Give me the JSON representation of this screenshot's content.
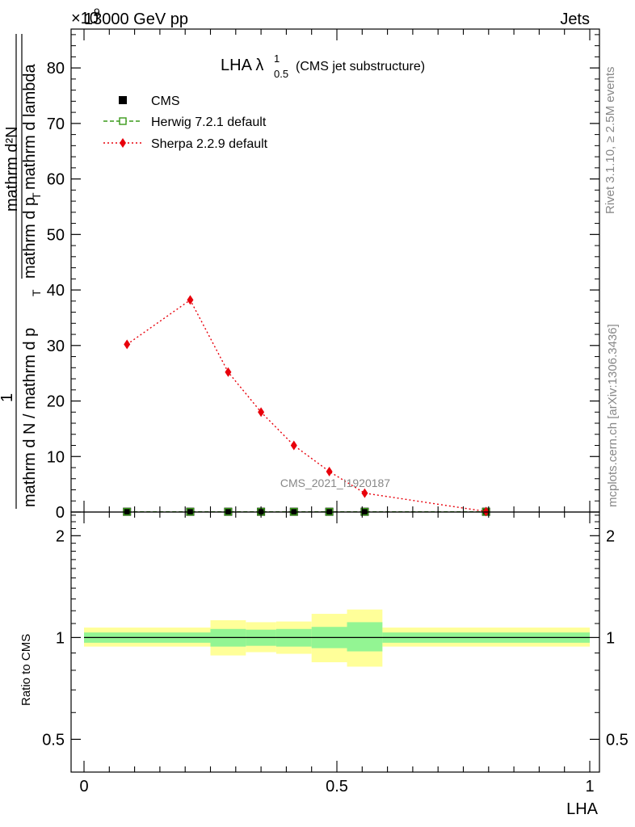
{
  "header": {
    "energy_label": "13000 GeV pp",
    "process_label": "Jets",
    "exponent_label": "×10",
    "exponent_power": "9"
  },
  "side_labels": {
    "rivet": "Rivet 3.1.10, ≥ 2.5M events",
    "mcplots": "mcplots.cern.ch [arXiv:1306.3436]"
  },
  "watermark": "CMS_2021_I1920187",
  "chart_data": [
    {
      "type": "line",
      "title_main": "LHA λ",
      "title_sup": "1",
      "title_sub": "0.5",
      "title_suffix": "(CMS jet substructure)",
      "ylabel": {
        "lead": "1",
        "denominator": "mathrm d N / mathrm d p",
        "denominator_sub": "T",
        "rhs_num": "mathrm d²N",
        "rhs_den": "mathrm d p",
        "rhs_den_sub": "T",
        "rhs_den_tail": "mathrm d lambda"
      },
      "xlim": [
        0,
        1
      ],
      "ylim": [
        0,
        87
      ],
      "y_scale_factor": "1e9",
      "y_ticks": [
        0,
        10,
        20,
        30,
        40,
        50,
        60,
        70,
        80
      ],
      "y_tick_labels": [
        "0",
        "10",
        "20",
        "30",
        "40",
        "50",
        "60",
        "70",
        "80"
      ],
      "legend": [
        {
          "name": "CMS",
          "marker": "square-filled",
          "color": "#000000"
        },
        {
          "name": "Herwig 7.2.1 default",
          "marker": "square-open",
          "color": "#3a9a1a",
          "line": "dashed"
        },
        {
          "name": "Sherpa 2.2.9 default",
          "marker": "diamond",
          "color": "#e8000b",
          "line": "dotted"
        }
      ],
      "series": [
        {
          "name": "CMS",
          "x": [
            0.085,
            0.21,
            0.285,
            0.35,
            0.415,
            0.485,
            0.555,
            0.795
          ],
          "y": [
            0.05,
            0.05,
            0.05,
            0.05,
            0.05,
            0.05,
            0.05,
            0.05
          ]
        },
        {
          "name": "Herwig 7.2.1 default",
          "x": [
            0.085,
            0.21,
            0.285,
            0.35,
            0.415,
            0.485,
            0.555,
            0.795
          ],
          "y": [
            0.05,
            0.05,
            0.05,
            0.05,
            0.05,
            0.05,
            0.05,
            0.05
          ]
        },
        {
          "name": "Sherpa 2.2.9 default",
          "x": [
            0.085,
            0.21,
            0.285,
            0.35,
            0.415,
            0.485,
            0.555,
            0.795
          ],
          "y": [
            30.2,
            38.2,
            25.2,
            18.0,
            12.0,
            7.3,
            3.4,
            0.1
          ]
        }
      ]
    },
    {
      "type": "area",
      "ylabel": "Ratio to CMS",
      "xlabel": "LHA",
      "xlim": [
        0,
        1
      ],
      "ylim": [
        0.4,
        2.35
      ],
      "y_scale": "log",
      "y_ticks": [
        0.5,
        1,
        2
      ],
      "y_tick_labels": [
        "0.5",
        "1",
        "2"
      ],
      "x_ticks": [
        0,
        0.5,
        1
      ],
      "x_tick_labels": [
        "0",
        "0.5",
        "1"
      ],
      "bins": [
        {
          "lo": 0.0,
          "hi": 0.25,
          "stat_lo": 0.965,
          "stat_hi": 1.035,
          "tot_lo": 0.94,
          "tot_hi": 1.07
        },
        {
          "lo": 0.25,
          "hi": 0.32,
          "stat_lo": 0.94,
          "stat_hi": 1.06,
          "tot_lo": 0.885,
          "tot_hi": 1.125
        },
        {
          "lo": 0.32,
          "hi": 0.38,
          "stat_lo": 0.945,
          "stat_hi": 1.055,
          "tot_lo": 0.905,
          "tot_hi": 1.11
        },
        {
          "lo": 0.38,
          "hi": 0.45,
          "stat_lo": 0.94,
          "stat_hi": 1.06,
          "tot_lo": 0.895,
          "tot_hi": 1.115
        },
        {
          "lo": 0.45,
          "hi": 0.52,
          "stat_lo": 0.93,
          "stat_hi": 1.075,
          "tot_lo": 0.845,
          "tot_hi": 1.175
        },
        {
          "lo": 0.52,
          "hi": 0.59,
          "stat_lo": 0.91,
          "stat_hi": 1.11,
          "tot_lo": 0.82,
          "tot_hi": 1.21
        },
        {
          "lo": 0.59,
          "hi": 1.0,
          "stat_lo": 0.965,
          "stat_hi": 1.035,
          "tot_lo": 0.94,
          "tot_hi": 1.07
        }
      ],
      "reference_line": 1
    }
  ],
  "colors": {
    "stat_band": "#93f593",
    "total_band": "#ffff99",
    "axis": "#000000",
    "grey_text": "#888888"
  }
}
